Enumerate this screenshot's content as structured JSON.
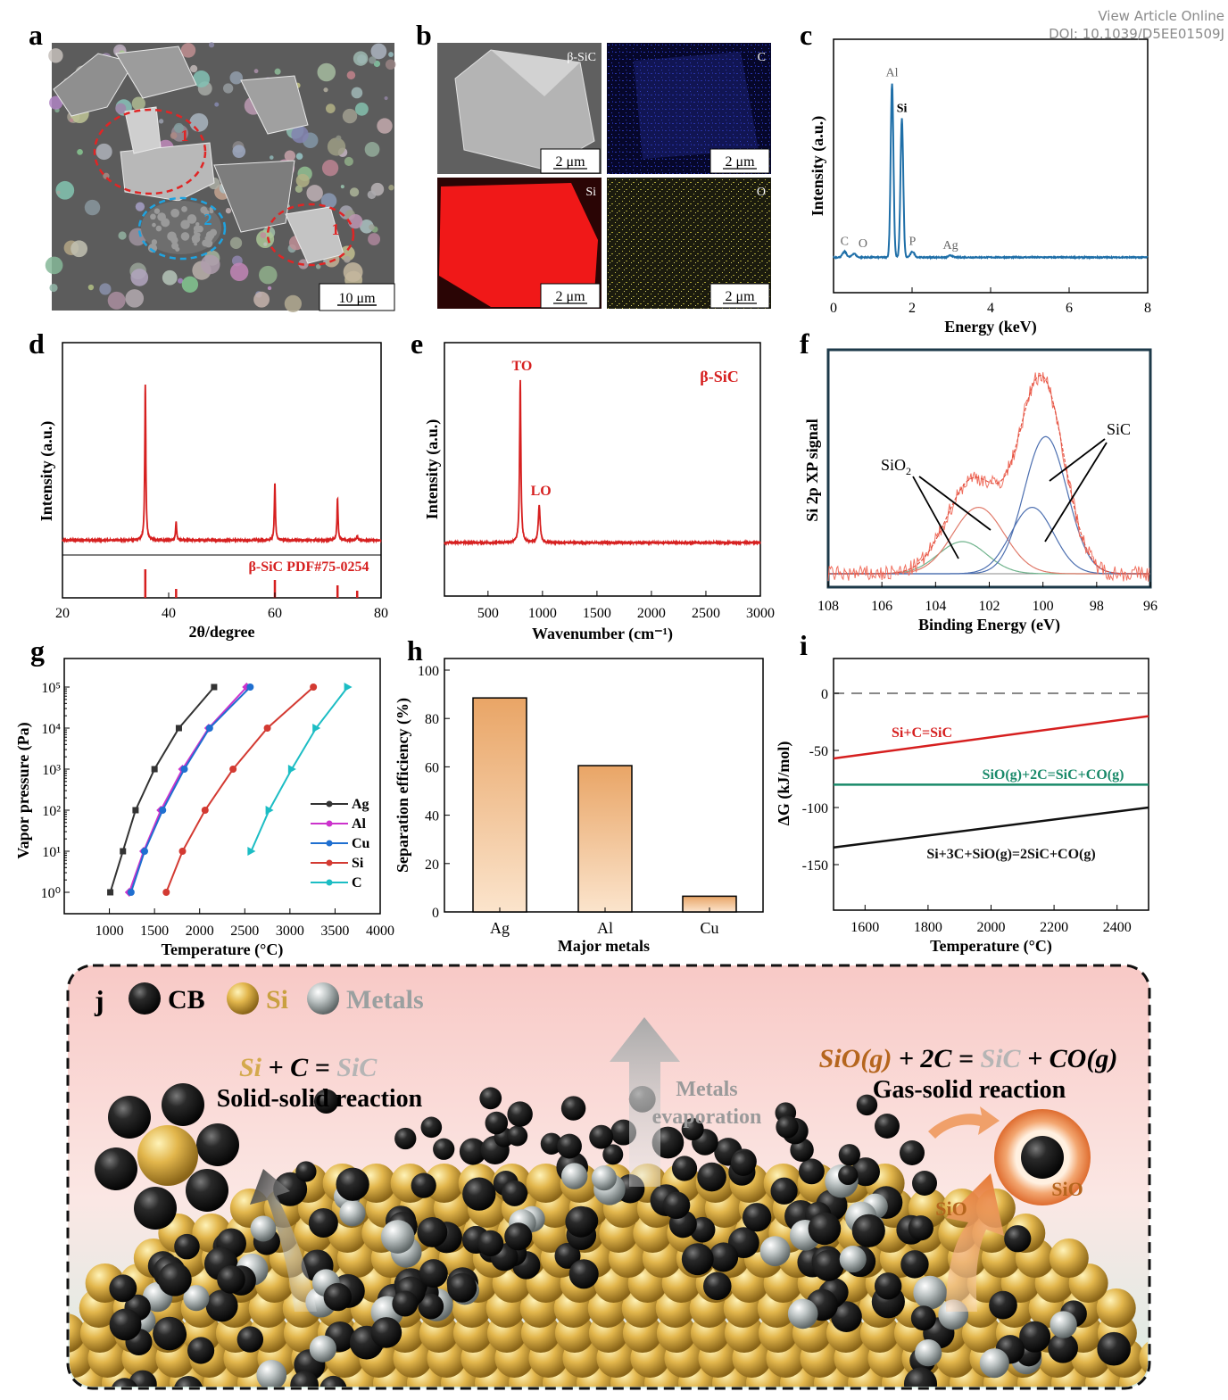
{
  "header": {
    "view_online": "View Article Online",
    "doi": "DOI: 10.1039/D5EE01509J"
  },
  "panel_a": {
    "letter": "a",
    "scale_bar": "10 μm",
    "region_labels": [
      "1",
      "2",
      "1"
    ]
  },
  "panel_b": {
    "letter": "b",
    "tiles": [
      {
        "label": "β-SiC",
        "scale_bar": "2 μm",
        "color": "#9a9a9a"
      },
      {
        "label": "C",
        "scale_bar": "2 μm",
        "color": "#1a1f7a"
      },
      {
        "label": "Si",
        "scale_bar": "2 μm",
        "color": "#e01010"
      },
      {
        "label": "O",
        "scale_bar": "2 μm",
        "color": "#b7b230"
      }
    ]
  },
  "colors": {
    "red": "#d61f1f",
    "blue": "#1f6fa8",
    "gray": "#999999",
    "teal": "#1a8a6a",
    "orange": "#e8a76c"
  },
  "chart_data": [
    {
      "panel": "c",
      "type": "line",
      "xlabel": "Energy (keV)",
      "ylabel": "Intensity (a.u.)",
      "xlim": [
        0,
        8
      ],
      "xticks": [
        0,
        2,
        4,
        6,
        8
      ],
      "peaks": [
        {
          "label": "C",
          "x": 0.28,
          "height": 0.03
        },
        {
          "label": "O",
          "x": 0.52,
          "height": 0.02
        },
        {
          "label": "Al",
          "x": 1.49,
          "height": 0.93
        },
        {
          "label": "Si",
          "x": 1.74,
          "height": 0.74
        },
        {
          "label": "P",
          "x": 2.01,
          "height": 0.03
        },
        {
          "label": "Ag",
          "x": 2.98,
          "height": 0.01
        }
      ]
    },
    {
      "panel": "d",
      "type": "line",
      "xlabel": "2θ/degree",
      "ylabel": "Intensity (a.u.)",
      "xlim": [
        20,
        80
      ],
      "xticks": [
        20,
        40,
        60,
        80
      ],
      "reference_label": "β-SiC PDF#75-0254",
      "peaks": [
        {
          "x": 35.6,
          "height": 1.0
        },
        {
          "x": 41.4,
          "height": 0.12
        },
        {
          "x": 60.0,
          "height": 0.37
        },
        {
          "x": 71.8,
          "height": 0.27
        },
        {
          "x": 75.5,
          "height": 0.03
        }
      ],
      "reference_positions": [
        35.6,
        41.4,
        60.0,
        71.8,
        75.5
      ]
    },
    {
      "panel": "e",
      "type": "line",
      "xlabel": "Wavenumber (cm⁻¹)",
      "ylabel": "Intensity (a.u.)",
      "xlim": [
        100,
        3000
      ],
      "xticks": [
        500,
        1000,
        1500,
        2000,
        2500,
        3000
      ],
      "annotation": "β-SiC",
      "peaks": [
        {
          "label": "TO",
          "x": 796,
          "height": 1.0
        },
        {
          "label": "LO",
          "x": 970,
          "height": 0.23
        }
      ]
    },
    {
      "panel": "f",
      "type": "line",
      "xlabel": "Binding Energy (eV)",
      "ylabel": "Si 2p XP signal",
      "xlim": [
        108,
        96
      ],
      "xticks": [
        108,
        106,
        104,
        102,
        100,
        98,
        96
      ],
      "components": [
        {
          "name": "SiO2",
          "center": 103.0,
          "height": 0.15,
          "width": 0.9
        },
        {
          "name": "SiO2",
          "center": 102.4,
          "height": 0.31,
          "width": 0.95
        },
        {
          "name": "SiC",
          "center": 100.4,
          "height": 0.31,
          "width": 0.8
        },
        {
          "name": "SiC",
          "center": 99.9,
          "height": 0.64,
          "width": 0.8
        }
      ],
      "labels": [
        "SiO₂",
        "SiC"
      ]
    },
    {
      "panel": "g",
      "type": "line",
      "log_y": true,
      "xlabel": "Temperature (°C)",
      "ylabel": "Vapor pressure (Pa)",
      "xlim": [
        500,
        4000
      ],
      "xticks": [
        1000,
        1500,
        2000,
        2500,
        3000,
        3500,
        4000
      ],
      "yticks": [
        "10⁰",
        "10¹",
        "10²",
        "10³",
        "10⁴",
        "10⁵"
      ],
      "legend_position": "right",
      "series": [
        {
          "name": "Ag",
          "color": "#333333",
          "x": [
            1010,
            1150,
            1290,
            1500,
            1770,
            2160
          ],
          "y": [
            0,
            1,
            2,
            3,
            4,
            5
          ]
        },
        {
          "name": "Al",
          "color": "#cc33cc",
          "x": [
            1220,
            1380,
            1570,
            1810,
            2100,
            2520
          ],
          "y": [
            0,
            1,
            2,
            3,
            4,
            5
          ]
        },
        {
          "name": "Cu",
          "color": "#1f6fd0",
          "x": [
            1240,
            1390,
            1590,
            1830,
            2110,
            2560
          ],
          "y": [
            0,
            1,
            2,
            3,
            4,
            5
          ]
        },
        {
          "name": "Si",
          "color": "#d33a32",
          "x": [
            1630,
            1810,
            2060,
            2370,
            2750,
            3260
          ],
          "y": [
            0,
            1,
            2,
            3,
            4,
            5
          ]
        },
        {
          "name": "C",
          "color": "#1cbdc4",
          "x": [
            2570,
            2770,
            3020,
            3290,
            3640
          ],
          "y": [
            1,
            2,
            3,
            4,
            5
          ]
        }
      ]
    },
    {
      "panel": "h",
      "type": "bar",
      "xlabel": "Major metals",
      "ylabel": "Separation efficiency (%)",
      "ylim": [
        0,
        100
      ],
      "yticks": [
        0,
        20,
        40,
        60,
        80,
        100
      ],
      "categories": [
        "Ag",
        "Al",
        "Cu"
      ],
      "values": [
        88.5,
        60.5,
        6.5
      ]
    },
    {
      "panel": "i",
      "type": "line",
      "xlabel": "Temperature (°C)",
      "ylabel": "ΔG (kJ/mol)",
      "xlim": [
        1500,
        2500
      ],
      "ylim": [
        -180,
        30
      ],
      "xticks": [
        1600,
        1800,
        2000,
        2200,
        2400
      ],
      "yticks": [
        0,
        -50,
        -100,
        -150
      ],
      "series": [
        {
          "name": "Si+C=SiC",
          "color": "#d61f1f",
          "x": [
            1500,
            2500
          ],
          "y": [
            -57,
            -20
          ]
        },
        {
          "name": "SiO(g)+2C=SiC+CO(g)",
          "color": "#1a8a6a",
          "x": [
            1500,
            2500
          ],
          "y": [
            -80,
            -80
          ]
        },
        {
          "name": "Si+3C+SiO(g)=2SiC+CO(g)",
          "color": "#111111",
          "x": [
            1500,
            2500
          ],
          "y": [
            -135,
            -100
          ]
        }
      ],
      "reference_line": {
        "y": 0,
        "style": "dashed",
        "color": "#888888"
      }
    }
  ],
  "panel_j": {
    "letter": "j",
    "legend": [
      {
        "label": "CB",
        "color": "#1a1a1a"
      },
      {
        "label": "Si",
        "color": "#c9a040"
      },
      {
        "label": "Metals",
        "color": "#9aa0a0"
      }
    ],
    "left_eq": {
      "a": "Si",
      "plus": " + ",
      "b": "C",
      "eq": " = ",
      "c": "SiC"
    },
    "left_title": "Solid-solid reaction",
    "center_label_1": "Metals",
    "center_label_2": "evaporation",
    "right_eq": {
      "a": "SiO(g)",
      "plus1": " + 2C = ",
      "b": "SiC",
      "plus2": " + ",
      "c": "CO(g)"
    },
    "right_title": "Gas-solid reaction",
    "sio_arrow_label": "SiO",
    "sio_shell_label": "SiO"
  }
}
